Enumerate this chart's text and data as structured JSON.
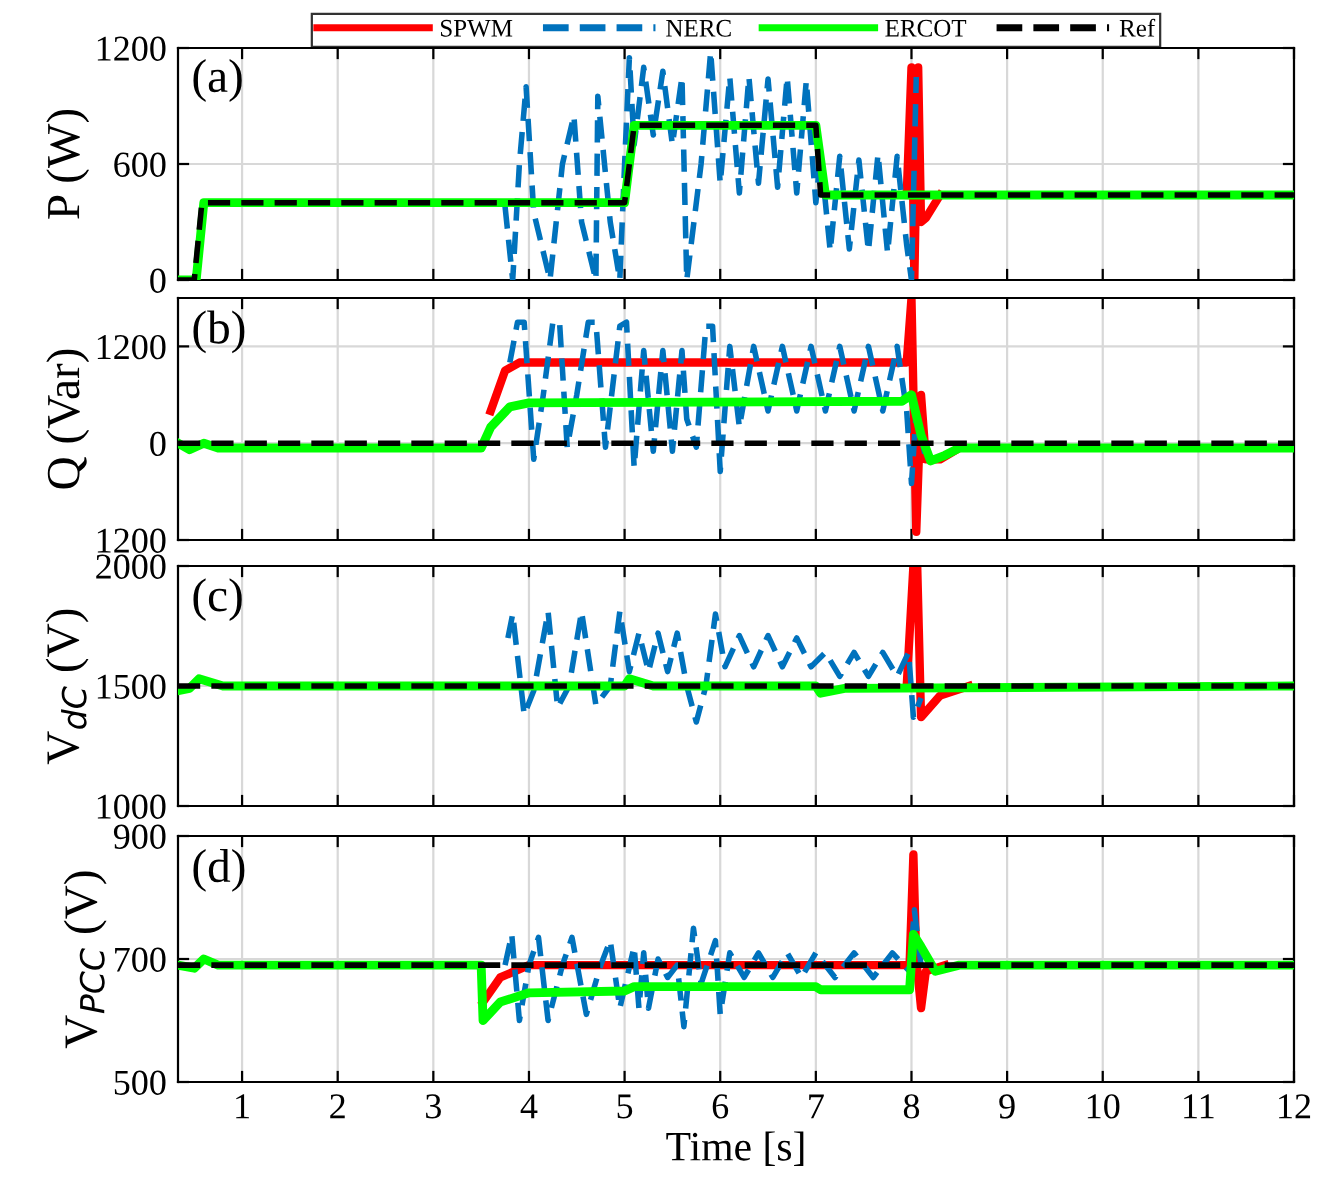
{
  "chart_data": [
    {
      "type": "line",
      "ylabel": "P (W)",
      "annotations": [
        "(a)"
      ],
      "xlim": [
        0.33,
        12
      ],
      "xticks": [
        1,
        2,
        3,
        4,
        5,
        6,
        7,
        8,
        9,
        10,
        11,
        12
      ],
      "ylim": [
        0,
        1200
      ],
      "yticks": [
        0,
        600,
        1200
      ],
      "tick_labels": "y",
      "grid": true,
      "legend": "top",
      "marker": "none",
      "series": [
        {
          "name": "SPWM",
          "color": "#ff0000",
          "line_style": "solid",
          "x": [
            7.95,
            8.0,
            8.03,
            8.07,
            8.1,
            8.15,
            8.3
          ],
          "values": [
            440,
            1100,
            0,
            1100,
            300,
            320,
            440
          ]
        },
        {
          "name": "NERC",
          "color": "#0072bd",
          "line_style": "dashed",
          "x": [
            3.75,
            3.83,
            3.9,
            3.97,
            4.05,
            4.22,
            4.35,
            4.47,
            4.55,
            4.7,
            4.72,
            4.85,
            4.95,
            5.0,
            5.05,
            5.1,
            5.2,
            5.3,
            5.4,
            5.5,
            5.6,
            5.65,
            5.8,
            5.9,
            6.0,
            6.1,
            6.2,
            6.3,
            6.4,
            6.5,
            6.6,
            6.7,
            6.8,
            6.9,
            7.0,
            7.05,
            7.15,
            7.25,
            7.35,
            7.45,
            7.55,
            7.65,
            7.75,
            7.85,
            7.95,
            8.0,
            8.05
          ],
          "values": [
            380,
            0,
            600,
            1000,
            350,
            0,
            600,
            850,
            300,
            0,
            950,
            300,
            0,
            600,
            1150,
            700,
            1100,
            750,
            1080,
            700,
            1050,
            0,
            600,
            1180,
            500,
            1050,
            450,
            1050,
            500,
            1040,
            480,
            1050,
            450,
            1030,
            400,
            650,
            150,
            640,
            160,
            620,
            150,
            650,
            140,
            640,
            180,
            0,
            1050
          ]
        },
        {
          "name": "ERCOT",
          "color": "#00ff00",
          "line_style": "solid",
          "x": [
            0.33,
            0.52,
            0.6,
            5.0,
            5.1,
            7.0,
            7.1,
            12
          ],
          "values": [
            0,
            0,
            400,
            400,
            800,
            800,
            440,
            440
          ]
        },
        {
          "name": "Ref",
          "color": "#000000",
          "line_style": "dashed",
          "x": [
            0.33,
            0.5,
            0.58,
            5.0,
            5.1,
            7.0,
            7.05,
            12
          ],
          "values": [
            0,
            0,
            400,
            400,
            800,
            800,
            440,
            440
          ]
        }
      ]
    },
    {
      "type": "line",
      "ylabel": "Q (Var)",
      "annotations": [
        "(b)"
      ],
      "xlim": [
        0.33,
        12
      ],
      "xticks": [
        1,
        2,
        3,
        4,
        5,
        6,
        7,
        8,
        9,
        10,
        11,
        12
      ],
      "ylim": [
        -1200,
        1800
      ],
      "yticks": [
        {
          "value": -1200,
          "label": "1200"
        },
        0,
        1200
      ],
      "tick_labels": "y",
      "grid": true,
      "marker": "none",
      "series": [
        {
          "color": "#ff0000",
          "line_style": "solid",
          "x": [
            3.6,
            3.75,
            3.9,
            7.95,
            8.0,
            8.05,
            8.1,
            8.15,
            8.3,
            8.5
          ],
          "values": [
            400,
            900,
            1000,
            1000,
            1800,
            -1100,
            600,
            -200,
            -200,
            -60
          ]
        },
        {
          "color": "#0072bd",
          "line_style": "dashed",
          "x": [
            3.8,
            3.88,
            3.95,
            4.05,
            4.15,
            4.25,
            4.32,
            4.4,
            4.5,
            4.62,
            4.7,
            4.8,
            4.95,
            5.02,
            5.1,
            5.2,
            5.3,
            5.4,
            5.5,
            5.6,
            5.65,
            5.75,
            5.85,
            5.92,
            6.0,
            6.1,
            6.2,
            6.35,
            6.5,
            6.65,
            6.8,
            6.95,
            7.1,
            7.25,
            7.4,
            7.55,
            7.7,
            7.85,
            7.95,
            8.0,
            8.05,
            8.15
          ],
          "values": [
            1000,
            1500,
            1500,
            -200,
            600,
            1500,
            1500,
            -50,
            600,
            1500,
            1500,
            -50,
            1450,
            1500,
            -300,
            1150,
            -100,
            1150,
            -100,
            1150,
            300,
            -50,
            1450,
            1450,
            -350,
            1200,
            200,
            1200,
            400,
            1200,
            400,
            1200,
            400,
            1200,
            400,
            1200,
            400,
            1200,
            400,
            -500,
            400,
            -200
          ]
        },
        {
          "color": "#00ff00",
          "line_style": "solid",
          "x": [
            0.33,
            0.45,
            0.6,
            0.75,
            3.5,
            3.6,
            3.8,
            4.0,
            7.9,
            8.0,
            8.1,
            8.2,
            8.35,
            8.5,
            12
          ],
          "values": [
            0,
            -80,
            0,
            -60,
            -60,
            200,
            450,
            500,
            520,
            600,
            100,
            -220,
            -150,
            -60,
            -60
          ]
        },
        {
          "color": "#000000",
          "line_style": "dashed",
          "x": [
            0.33,
            12
          ],
          "values": [
            0,
            0
          ]
        }
      ]
    },
    {
      "type": "line",
      "ylabel": "V$_{dC}$ (V)",
      "annotations": [
        "(c)"
      ],
      "xlim": [
        0.33,
        12
      ],
      "xticks": [
        1,
        2,
        3,
        4,
        5,
        6,
        7,
        8,
        9,
        10,
        11,
        12
      ],
      "ylim": [
        1000,
        2000
      ],
      "yticks": [
        1000,
        1500,
        2000
      ],
      "tick_labels": "y",
      "grid": true,
      "marker": "none",
      "series": [
        {
          "color": "#ff0000",
          "line_style": "solid",
          "x": [
            7.95,
            8.02,
            8.06,
            8.1,
            8.3,
            8.6
          ],
          "values": [
            1500,
            2000,
            2000,
            1370,
            1460,
            1500
          ]
        },
        {
          "color": "#0072bd",
          "line_style": "dashed",
          "x": [
            3.78,
            3.83,
            3.95,
            4.05,
            4.2,
            4.3,
            4.42,
            4.55,
            4.7,
            4.85,
            4.95,
            5.05,
            5.15,
            5.25,
            5.35,
            5.45,
            5.55,
            5.65,
            5.75,
            5.85,
            5.95,
            6.05,
            6.2,
            6.35,
            6.5,
            6.65,
            6.8,
            6.95,
            7.1,
            7.25,
            7.4,
            7.55,
            7.7,
            7.85,
            7.97,
            8.02,
            8.1
          ],
          "values": [
            1700,
            1800,
            1380,
            1480,
            1810,
            1410,
            1500,
            1810,
            1420,
            1500,
            1810,
            1560,
            1720,
            1560,
            1720,
            1560,
            1720,
            1500,
            1350,
            1500,
            1800,
            1580,
            1710,
            1580,
            1710,
            1580,
            1700,
            1580,
            1640,
            1540,
            1640,
            1540,
            1640,
            1540,
            1640,
            1370,
            1450
          ]
        },
        {
          "color": "#00ff00",
          "line_style": "solid",
          "x": [
            0.33,
            0.45,
            0.55,
            0.8,
            5.0,
            5.05,
            5.3,
            7.0,
            7.05,
            7.3,
            12
          ],
          "values": [
            1480,
            1490,
            1530,
            1500,
            1500,
            1530,
            1500,
            1500,
            1470,
            1490,
            1500
          ]
        },
        {
          "color": "#000000",
          "line_style": "dashed",
          "x": [
            0.33,
            12
          ],
          "values": [
            1500,
            1500
          ]
        }
      ]
    },
    {
      "type": "line",
      "xlabel": "Time [s]",
      "ylabel": "V$_{PCC}$ (V)",
      "annotations": [
        "(d)"
      ],
      "xlim": [
        0.33,
        12
      ],
      "xticks": [
        1,
        2,
        3,
        4,
        5,
        6,
        7,
        8,
        9,
        10,
        11,
        12
      ],
      "ylim": [
        500,
        900
      ],
      "yticks": [
        500,
        700,
        900
      ],
      "grid": true,
      "marker": "none",
      "series": [
        {
          "color": "#ff0000",
          "line_style": "solid",
          "x": [
            3.52,
            3.7,
            4.0,
            7.98,
            8.02,
            8.05,
            8.1,
            8.15,
            8.35
          ],
          "values": [
            630,
            670,
            690,
            690,
            870,
            700,
            620,
            680,
            690
          ]
        },
        {
          "color": "#0072bd",
          "line_style": "dashed",
          "x": [
            3.75,
            3.82,
            3.9,
            4.0,
            4.1,
            4.2,
            4.35,
            4.45,
            4.6,
            4.75,
            4.85,
            4.95,
            5.1,
            5.15,
            5.2,
            5.25,
            5.35,
            5.45,
            5.55,
            5.62,
            5.72,
            5.8,
            5.95,
            6.0,
            6.1,
            6.25,
            6.4,
            6.55,
            6.7,
            6.85,
            7.0,
            7.2,
            7.4,
            7.6,
            7.8,
            7.98,
            8.03,
            8.1
          ],
          "values": [
            690,
            740,
            600,
            690,
            735,
            600,
            690,
            735,
            610,
            690,
            730,
            620,
            720,
            620,
            710,
            620,
            700,
            670,
            690,
            590,
            750,
            660,
            730,
            610,
            710,
            670,
            710,
            670,
            710,
            670,
            710,
            670,
            710,
            670,
            710,
            680,
            780,
            690
          ]
        },
        {
          "color": "#00ff00",
          "line_style": "solid",
          "x": [
            0.33,
            0.5,
            0.6,
            0.75,
            3.5,
            3.52,
            3.7,
            4.0,
            5.0,
            5.1,
            7.0,
            7.05,
            7.98,
            8.02,
            8.1,
            8.25,
            8.5,
            12
          ],
          "values": [
            690,
            685,
            700,
            690,
            690,
            600,
            630,
            645,
            648,
            655,
            655,
            650,
            650,
            740,
            720,
            680,
            690,
            690
          ]
        },
        {
          "color": "#000000",
          "line_style": "dashed",
          "x": [
            0.33,
            12
          ],
          "values": [
            690,
            690
          ]
        }
      ]
    }
  ]
}
